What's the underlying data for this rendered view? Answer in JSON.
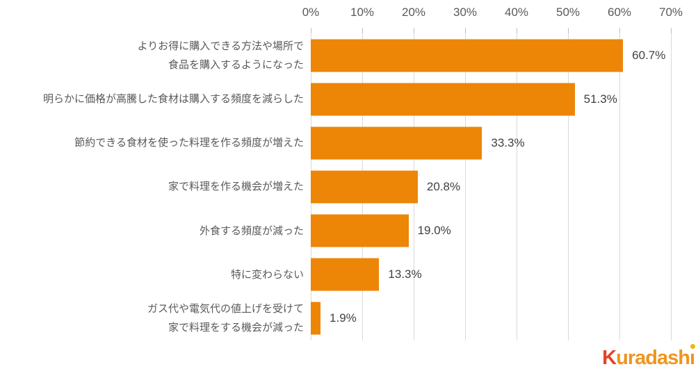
{
  "chart_data": {
    "type": "bar",
    "orientation": "horizontal",
    "title": "",
    "categories": [
      "よりお得に購入できる方法や場所で\n食品を購入するようになった",
      "明らかに価格が高騰した食材は購入する頻度を減らした",
      "節約できる食材を使った料理を作る頻度が増えた",
      "家で料理を作る機会が増えた",
      "外食する頻度が減った",
      "特に変わらない",
      "ガス代や電気代の値上げを受けて\n家で料理をする機会が減った"
    ],
    "values": [
      60.7,
      51.3,
      33.3,
      20.8,
      19.0,
      13.3,
      1.9
    ],
    "value_labels": [
      "60.7%",
      "51.3%",
      "33.3%",
      "20.8%",
      "19.0%",
      "13.3%",
      "1.9%"
    ],
    "axis": {
      "position": "top",
      "ticks": [
        "0%",
        "10%",
        "20%",
        "30%",
        "40%",
        "50%",
        "60%",
        "70%"
      ],
      "min": 0,
      "max": 70,
      "grid": true
    },
    "bar_color": "#ED8507",
    "gridline_color": "#D9D9D9",
    "tick_color": "#BFBFBF",
    "axis_text_color": "#595959",
    "label_text_color": "#595959",
    "value_text_color": "#404040",
    "legend": "none"
  },
  "branding": {
    "logo_k": "K",
    "logo_body": "uradash",
    "logo_i_stem": "ı",
    "logo_k_color": "#E24526",
    "logo_body_color": "#F0941F",
    "logo_dot_color": "#F2B40C"
  }
}
